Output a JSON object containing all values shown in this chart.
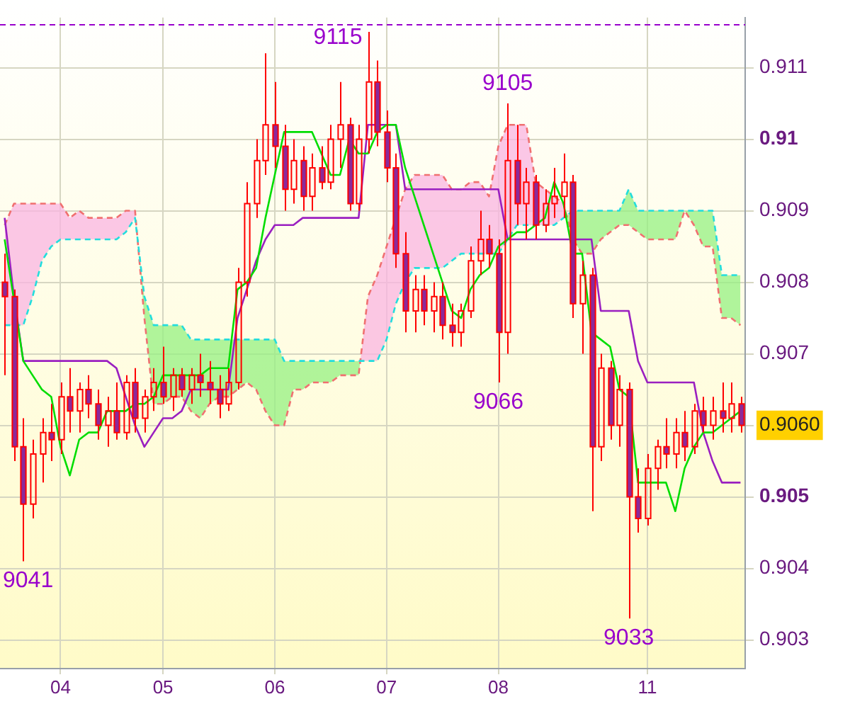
{
  "chart_data": {
    "type": "candlestick",
    "color": "#ff0000",
    "categories": [
      null,
      null,
      null,
      null,
      null,
      null,
      "04",
      null,
      null,
      null,
      null,
      null,
      null,
      null,
      null,
      null,
      null,
      "05",
      null,
      null,
      null,
      null,
      null,
      null,
      null,
      null,
      null,
      null,
      null,
      "06",
      null,
      null,
      null,
      null,
      null,
      null,
      null,
      null,
      null,
      null,
      null,
      "07",
      null,
      null,
      null,
      null,
      null,
      null,
      null,
      null,
      null,
      null,
      null,
      "08",
      null,
      null,
      null,
      null,
      null,
      null,
      null,
      null,
      null,
      null,
      null,
      null,
      null,
      null,
      null,
      "11",
      null,
      null,
      null,
      null,
      null,
      null,
      null,
      null,
      null,
      null
    ],
    "ohlc": [
      [
        0.908,
        0.9084,
        0.9067,
        0.9078
      ],
      [
        0.9078,
        0.9079,
        0.9055,
        0.9057
      ],
      [
        0.9057,
        0.9061,
        0.9041,
        0.9049
      ],
      [
        0.9049,
        0.9058,
        0.9047,
        0.9056
      ],
      [
        0.9056,
        0.9061,
        0.9052,
        0.9059
      ],
      [
        0.9059,
        0.9063,
        0.9055,
        0.9058
      ],
      [
        0.9058,
        0.9066,
        0.9056,
        0.9064
      ],
      [
        0.9064,
        0.9068,
        0.9059,
        0.9062
      ],
      [
        0.9062,
        0.9066,
        0.9059,
        0.9065
      ],
      [
        0.9065,
        0.9067,
        0.9061,
        0.9063
      ],
      [
        0.9063,
        0.9065,
        0.9058,
        0.906
      ],
      [
        0.906,
        0.9064,
        0.9057,
        0.9062
      ],
      [
        0.9062,
        0.9066,
        0.9058,
        0.9059
      ],
      [
        0.9059,
        0.9067,
        0.9058,
        0.9066
      ],
      [
        0.9066,
        0.9068,
        0.9059,
        0.9061
      ],
      [
        0.9061,
        0.9065,
        0.9059,
        0.9064
      ],
      [
        0.9064,
        0.9068,
        0.9062,
        0.9066
      ],
      [
        0.9066,
        0.9071,
        0.9063,
        0.9064
      ],
      [
        0.9064,
        0.9068,
        0.9062,
        0.9067
      ],
      [
        0.9067,
        0.9068,
        0.9064,
        0.9065
      ],
      [
        0.9065,
        0.9068,
        0.9063,
        0.9067
      ],
      [
        0.9067,
        0.907,
        0.9064,
        0.9066
      ],
      [
        0.9066,
        0.9069,
        0.9063,
        0.9065
      ],
      [
        0.9065,
        0.9067,
        0.9061,
        0.9063
      ],
      [
        0.9063,
        0.9068,
        0.9062,
        0.9066
      ],
      [
        0.9066,
        0.9082,
        0.9065,
        0.908
      ],
      [
        0.908,
        0.9094,
        0.9078,
        0.9091
      ],
      [
        0.9091,
        0.91,
        0.9089,
        0.9097
      ],
      [
        0.9097,
        0.9112,
        0.9095,
        0.9102
      ],
      [
        0.9102,
        0.9108,
        0.9096,
        0.9099
      ],
      [
        0.9099,
        0.9102,
        0.909,
        0.9093
      ],
      [
        0.9093,
        0.91,
        0.9091,
        0.9097
      ],
      [
        0.9097,
        0.9099,
        0.909,
        0.9092
      ],
      [
        0.9092,
        0.9098,
        0.909,
        0.9096
      ],
      [
        0.9096,
        0.9099,
        0.9093,
        0.9094
      ],
      [
        0.9094,
        0.9102,
        0.9093,
        0.91
      ],
      [
        0.91,
        0.9108,
        0.9096,
        0.9102
      ],
      [
        0.9102,
        0.9103,
        0.909,
        0.9091
      ],
      [
        0.9091,
        0.9102,
        0.909,
        0.91
      ],
      [
        0.91,
        0.9115,
        0.9098,
        0.9108
      ],
      [
        0.9108,
        0.9111,
        0.9099,
        0.9101
      ],
      [
        0.9101,
        0.9104,
        0.9094,
        0.9096
      ],
      [
        0.9096,
        0.9098,
        0.9082,
        0.9084
      ],
      [
        0.9084,
        0.9087,
        0.9073,
        0.9076
      ],
      [
        0.9076,
        0.9081,
        0.9073,
        0.9079
      ],
      [
        0.9079,
        0.9081,
        0.9074,
        0.9076
      ],
      [
        0.9076,
        0.908,
        0.9073,
        0.9078
      ],
      [
        0.9078,
        0.908,
        0.9072,
        0.9074
      ],
      [
        0.9074,
        0.9077,
        0.9071,
        0.9073
      ],
      [
        0.9073,
        0.9077,
        0.9071,
        0.9076
      ],
      [
        0.9076,
        0.9085,
        0.9075,
        0.9083
      ],
      [
        0.9083,
        0.909,
        0.9081,
        0.9086
      ],
      [
        0.9086,
        0.9088,
        0.9082,
        0.9084
      ],
      [
        0.9084,
        0.9086,
        0.9066,
        0.9073
      ],
      [
        0.9073,
        0.9105,
        0.907,
        0.9097
      ],
      [
        0.9097,
        0.9102,
        0.9088,
        0.9091
      ],
      [
        0.9091,
        0.9096,
        0.9086,
        0.9094
      ],
      [
        0.9094,
        0.9095,
        0.9086,
        0.9088
      ],
      [
        0.9088,
        0.9093,
        0.9087,
        0.9091
      ],
      [
        0.9091,
        0.9096,
        0.9089,
        0.9092
      ],
      [
        0.9092,
        0.9098,
        0.9089,
        0.9094
      ],
      [
        0.9094,
        0.9095,
        0.9075,
        0.9077
      ],
      [
        0.9077,
        0.9083,
        0.907,
        0.9081
      ],
      [
        0.9081,
        0.9082,
        0.9048,
        0.9057
      ],
      [
        0.9057,
        0.907,
        0.9055,
        0.9068
      ],
      [
        0.9068,
        0.9069,
        0.9058,
        0.906
      ],
      [
        0.906,
        0.9067,
        0.9057,
        0.9065
      ],
      [
        0.9065,
        0.9066,
        0.9033,
        0.905
      ],
      [
        0.905,
        0.9054,
        0.9045,
        0.9047
      ],
      [
        0.9047,
        0.9056,
        0.9046,
        0.9054
      ],
      [
        0.9054,
        0.9058,
        0.9051,
        0.9057
      ],
      [
        0.9057,
        0.9061,
        0.9054,
        0.9056
      ],
      [
        0.9056,
        0.9061,
        0.9054,
        0.9059
      ],
      [
        0.9059,
        0.9062,
        0.9055,
        0.9057
      ],
      [
        0.9057,
        0.9063,
        0.9056,
        0.9062
      ],
      [
        0.9062,
        0.9064,
        0.9059,
        0.906
      ],
      [
        0.906,
        0.9064,
        0.9058,
        0.9062
      ],
      [
        0.9062,
        0.9066,
        0.9059,
        0.9061
      ],
      [
        0.9061,
        0.9066,
        0.9059,
        0.9063
      ],
      [
        0.9063,
        0.9064,
        0.9059,
        0.906
      ]
    ],
    "series": [
      {
        "type": "line",
        "color": "#00dd00",
        "values": [
          0.9086,
          null,
          0.9069,
          0.9067,
          0.9065,
          0.9064,
          0.9057,
          0.9053,
          0.9058,
          0.9059,
          0.9059,
          0.9062,
          0.9062,
          0.9062,
          0.9063,
          0.9063,
          0.9064,
          0.9067,
          0.9067,
          0.9067,
          0.9067,
          0.9067,
          0.9068,
          0.9068,
          0.9068,
          0.9079,
          0.908,
          0.9082,
          0.9089,
          0.9095,
          0.9101,
          0.9101,
          0.9101,
          0.9101,
          0.9098,
          0.9095,
          0.9095,
          0.91,
          0.9098,
          0.9098,
          0.9101,
          0.9102,
          0.9102,
          0.9096,
          0.9092,
          0.9088,
          0.9084,
          0.908,
          0.9076,
          0.9075,
          0.9079,
          0.9081,
          0.9082,
          0.9085,
          0.9086,
          0.9087,
          0.9087,
          0.9088,
          0.9089,
          0.9094,
          0.9091,
          0.9084,
          0.9084,
          0.9073,
          0.9072,
          0.9071,
          0.9065,
          0.9064,
          0.9052,
          0.9052,
          0.9052,
          0.9052,
          0.9048,
          0.9054,
          0.9057,
          0.9059,
          0.9059,
          0.906,
          0.9061,
          0.9062
        ]
      },
      {
        "type": "line",
        "color": "#9a1fc0",
        "values": [
          0.9089,
          0.9078,
          0.9069,
          0.9069,
          0.9069,
          0.9069,
          0.9069,
          0.9069,
          0.9069,
          0.9069,
          0.9069,
          0.9069,
          0.9068,
          0.9064,
          0.906,
          0.9057,
          0.9059,
          0.9061,
          0.9061,
          0.9062,
          0.9065,
          0.9065,
          0.9065,
          0.9065,
          0.9065,
          0.9075,
          0.9079,
          0.9083,
          0.9086,
          0.9088,
          0.9088,
          0.9088,
          0.9089,
          0.9089,
          0.9089,
          0.9089,
          0.9089,
          0.9089,
          0.9089,
          0.9102,
          0.9102,
          0.9102,
          0.9102,
          0.9093,
          0.9093,
          0.9093,
          0.9093,
          0.9093,
          0.9093,
          0.9093,
          0.9093,
          0.9093,
          0.9093,
          0.9093,
          0.9086,
          0.9086,
          0.9086,
          0.9086,
          0.9086,
          0.9086,
          0.9086,
          0.9086,
          0.9086,
          0.9086,
          0.9076,
          0.9076,
          0.9076,
          0.9076,
          0.9069,
          0.9066,
          0.9066,
          0.9066,
          0.9066,
          0.9066,
          0.9066,
          0.9059,
          0.9055,
          0.9052,
          0.9052,
          0.9052
        ]
      },
      {
        "type": "line",
        "color": "#22dddd",
        "line_style": "dashed",
        "values": [
          0.9074,
          0.9074,
          0.9074,
          0.9078,
          0.9083,
          0.9085,
          0.9086,
          0.9086,
          0.9086,
          0.9086,
          0.9086,
          0.9086,
          0.9086,
          0.9087,
          0.9089,
          0.9078,
          0.9074,
          0.9074,
          0.9074,
          0.9074,
          0.9072,
          0.9072,
          0.9072,
          0.9072,
          0.9072,
          0.9072,
          0.9072,
          0.9072,
          0.9072,
          0.9072,
          0.9069,
          0.9069,
          0.9069,
          0.9069,
          0.9069,
          0.9069,
          0.9069,
          0.9069,
          0.9069,
          0.9069,
          0.9069,
          0.9072,
          0.9077,
          0.908,
          0.9082,
          0.9082,
          0.9082,
          0.9082,
          0.9083,
          0.9084,
          0.9084,
          0.9084,
          0.9084,
          0.9084,
          0.9086,
          0.9088,
          0.9088,
          0.9088,
          0.9088,
          0.9088,
          0.9089,
          0.909,
          0.909,
          0.909,
          0.909,
          0.909,
          0.909,
          0.9093,
          0.909,
          0.909,
          0.909,
          0.909,
          0.909,
          0.909,
          0.909,
          0.909,
          0.909,
          0.9081,
          0.9081,
          0.9081
        ]
      },
      {
        "type": "line",
        "color": "#f07070",
        "line_style": "dashed",
        "values": [
          0.9088,
          0.9091,
          0.9091,
          0.9091,
          0.9091,
          0.9091,
          0.9091,
          0.9089,
          0.909,
          0.9089,
          0.9089,
          0.9089,
          0.9089,
          0.909,
          0.909,
          0.9075,
          0.9063,
          0.9063,
          0.9064,
          0.9064,
          0.9062,
          0.9061,
          0.9063,
          0.9064,
          0.9064,
          0.9065,
          0.9066,
          0.9065,
          0.9062,
          0.906,
          0.906,
          0.9065,
          0.9065,
          0.9066,
          0.9066,
          0.9066,
          0.9067,
          0.9067,
          0.9067,
          0.9078,
          0.9081,
          0.9085,
          0.9089,
          0.9093,
          0.9095,
          0.9095,
          0.9095,
          0.9095,
          0.9093,
          0.9093,
          0.9094,
          0.9094,
          0.9092,
          0.9099,
          0.9102,
          0.9102,
          0.9102,
          0.9094,
          0.9093,
          0.9092,
          0.9091,
          0.9086,
          0.9084,
          0.9084,
          0.9086,
          0.9087,
          0.9088,
          0.9088,
          0.9087,
          0.9086,
          0.9086,
          0.9086,
          0.9086,
          0.909,
          0.9088,
          0.9085,
          0.9085,
          0.9075,
          0.9075,
          0.9074
        ]
      }
    ],
    "ylim": [
      0.9026,
      0.9117
    ],
    "yticks": [
      0.903,
      0.904,
      0.905,
      {
        "value": 0.906,
        "label": "0.9060"
      },
      0.907,
      0.908,
      0.909,
      0.91,
      0.911
    ],
    "grid": true,
    "ref_lines": [
      {
        "axis": "y",
        "value": 0.9116,
        "color": "#9900cc",
        "line_style": "dashed"
      }
    ],
    "annotations": [
      "9115",
      {
        "text": "9105",
        "y": 0.9105
      },
      {
        "text": "9066",
        "y": 0.9066
      },
      {
        "text": "9041",
        "y": 0.9041
      },
      {
        "text": "9033",
        "y": 0.9033
      }
    ]
  }
}
